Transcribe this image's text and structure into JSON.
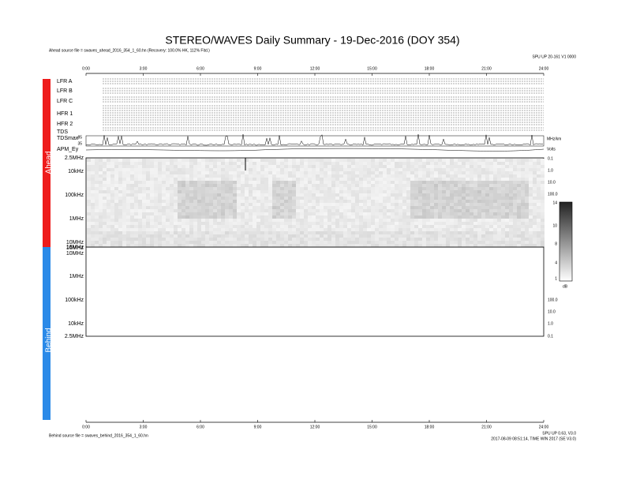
{
  "title": "STEREO/WAVES Daily Summary - 19-Dec-2016 (DOY 354)",
  "ahead_source": "Ahead source file = swaves_ahead_2016_354_1_60.hn (Recovery: 100.0% HK, 112% Fitd.)",
  "top_right_note": "SPU UP 20-161 V1 0000",
  "time_labels": [
    "0:00",
    "3:00",
    "6:00",
    "9:00",
    "12:00",
    "15:00",
    "18:00",
    "21:00",
    "24:00"
  ],
  "panels": [
    "LFR A",
    "LFR B",
    "LFR C",
    "HFR 1",
    "HFR 2",
    "TDS",
    "TDSmax",
    "APM_Ey"
  ],
  "tdsmax_ticks": [
    "85",
    "35"
  ],
  "side_labels": {
    "ahead": "Ahead",
    "behind": "Behind"
  },
  "ahead_freq_labels": [
    "2.5MHz",
    "10kHz",
    "100kHz",
    "1MHz",
    "10MHz",
    "16MHz"
  ],
  "behind_freq_labels": [
    "16MHz",
    "10MHz",
    "1MHz",
    "100kHz",
    "10kHz",
    "2.5MHz"
  ],
  "right_ahead": [
    "0.1",
    "1.0",
    "10.0",
    "100.0"
  ],
  "right_behind": [
    "100.0",
    "10.0",
    "1.0",
    "0.1"
  ],
  "right_panel_notes": [
    "MHz/km",
    "Volts"
  ],
  "colorbar_ticks": [
    "14",
    "10",
    "8",
    "4",
    "1"
  ],
  "colorbar_unit": "dB",
  "behind_source": "Behind source file = swaves_behind_2016_354_1_60.hn",
  "bottom_right_notes": [
    "SPU UP 0.63, V3.0",
    "2017-08-09 08:51:14, TIME WIN 2017 (SE V3.0)"
  ]
}
